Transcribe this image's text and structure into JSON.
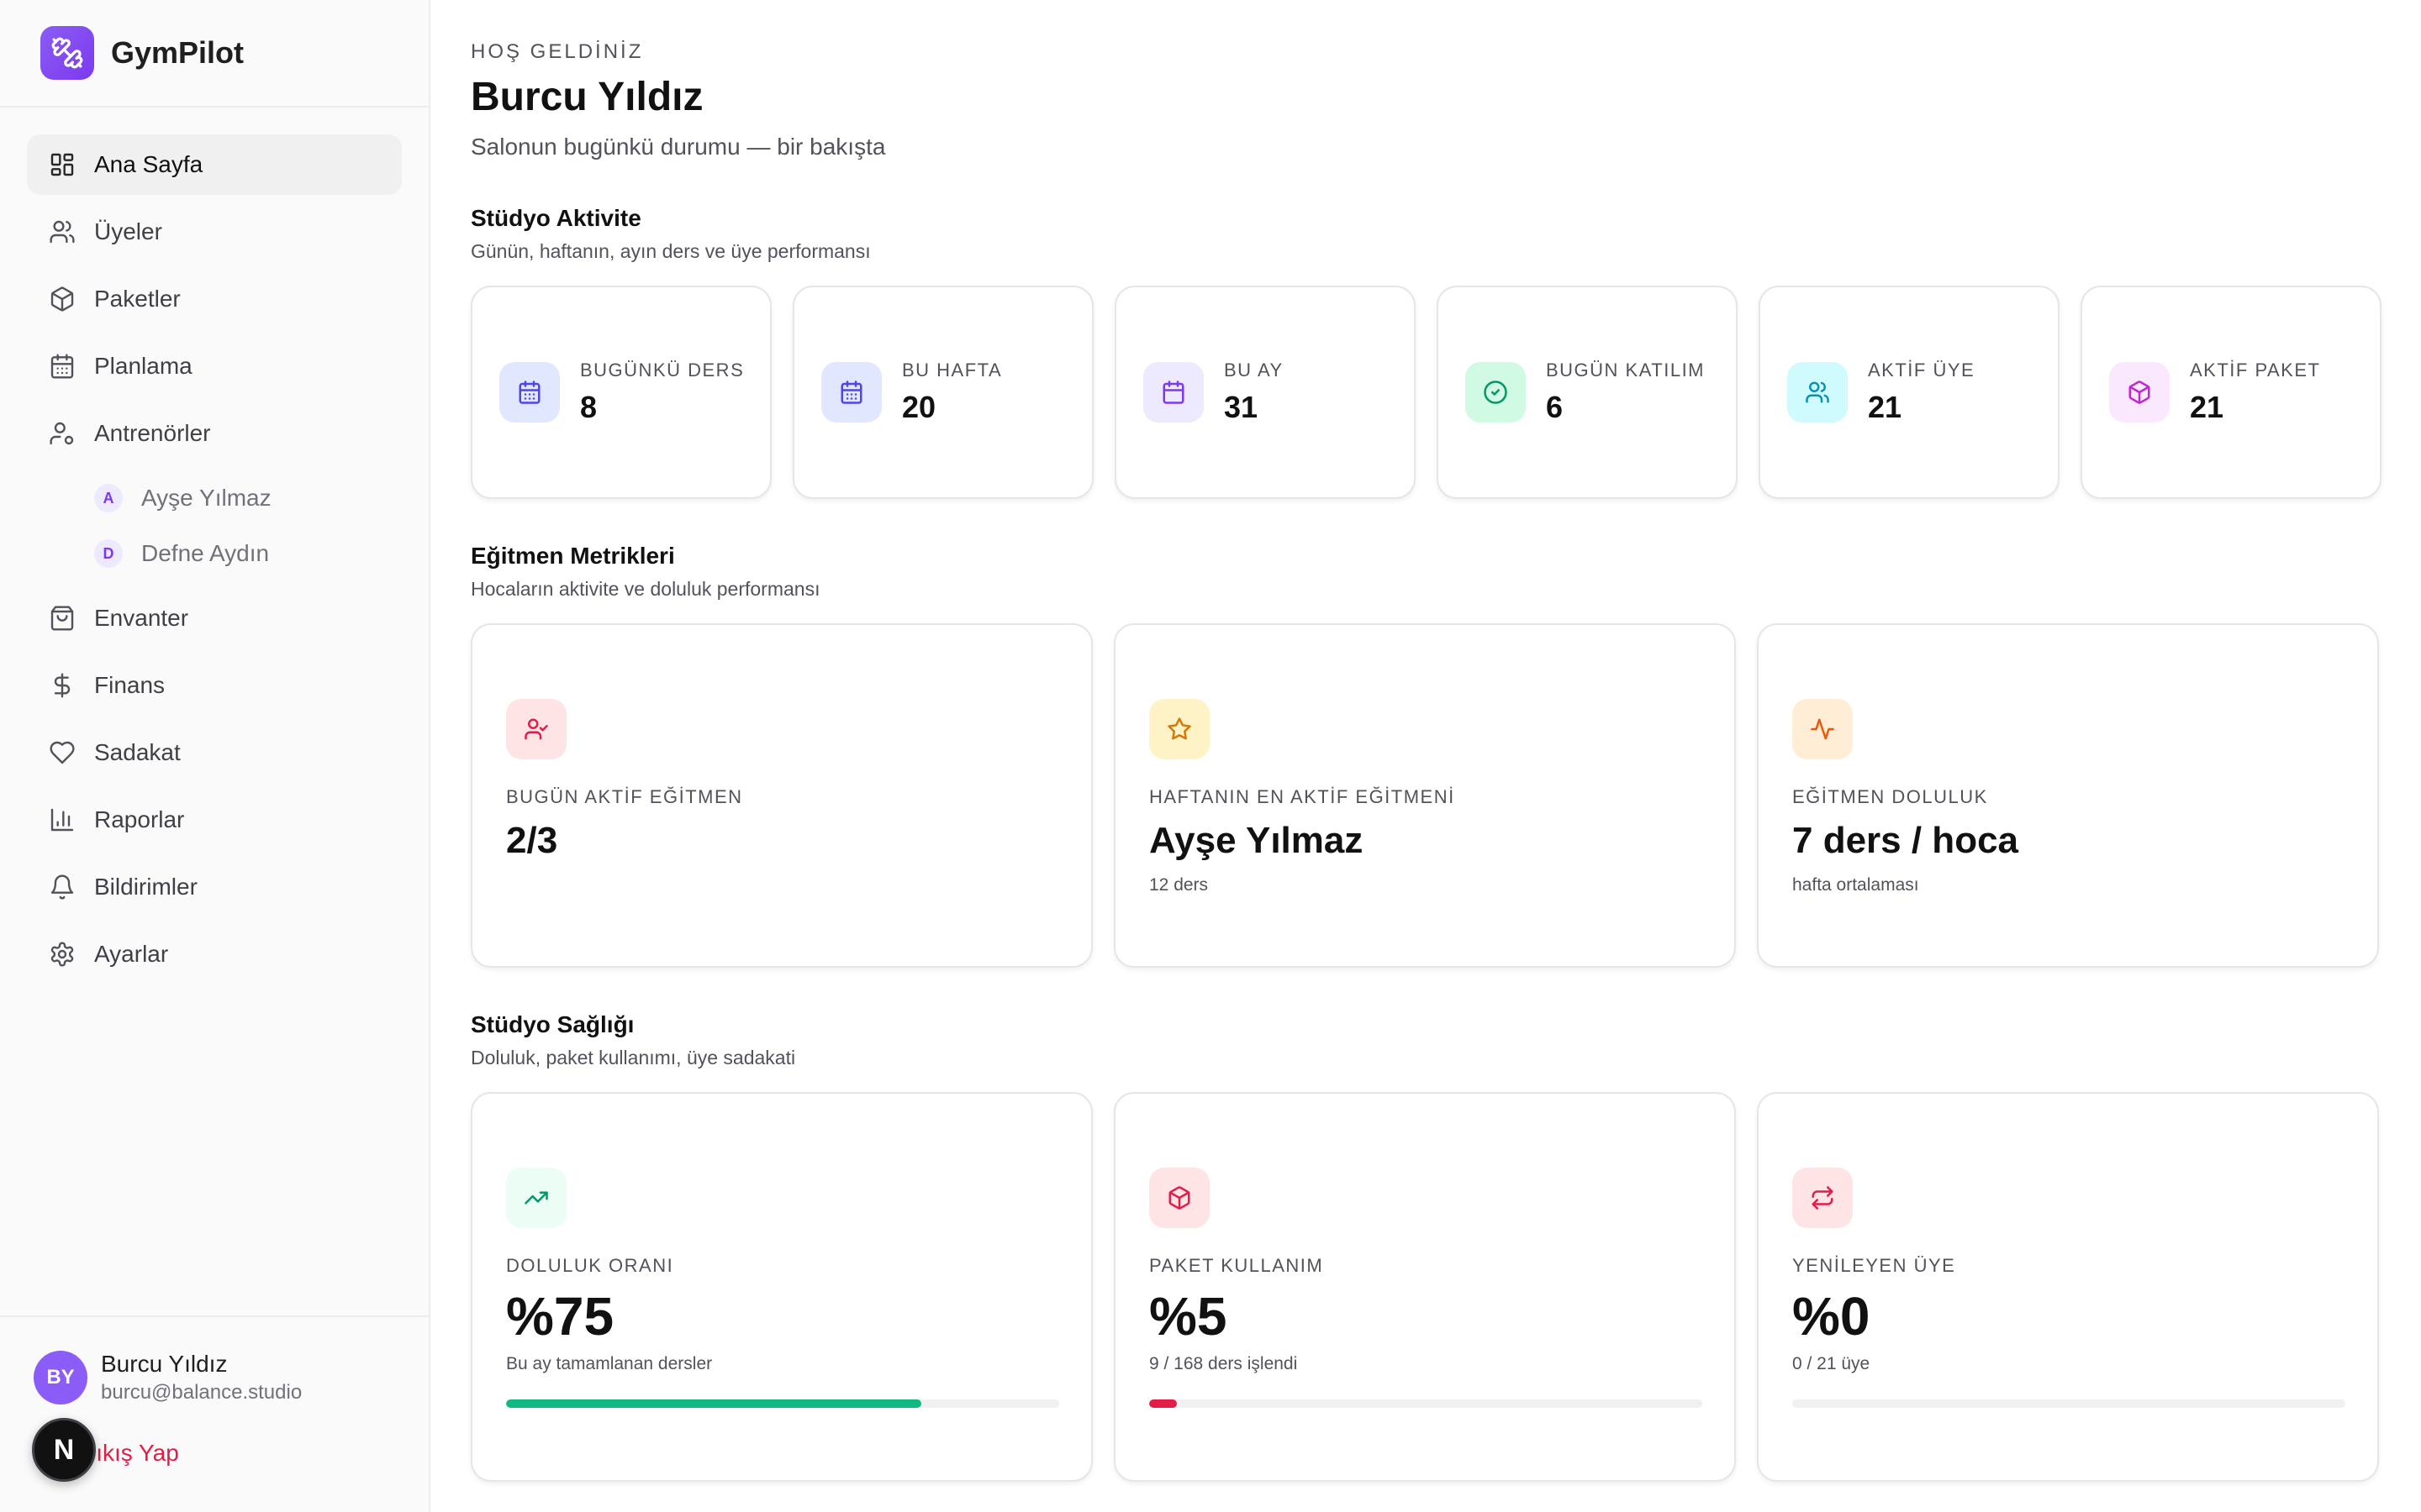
{
  "app": {
    "name": "GymPilot",
    "brand_color": "#8b5cf6"
  },
  "sidebar": {
    "nav": [
      {
        "label": "Ana Sayfa",
        "icon": "dashboard-icon",
        "active": true
      },
      {
        "label": "Üyeler",
        "icon": "users-icon"
      },
      {
        "label": "Paketler",
        "icon": "package-icon"
      },
      {
        "label": "Planlama",
        "icon": "calendar-icon"
      },
      {
        "label": "Antrenörler",
        "icon": "trainer-icon"
      },
      {
        "label": "Envanter",
        "icon": "shopping-bag-icon"
      },
      {
        "label": "Finans",
        "icon": "dollar-icon"
      },
      {
        "label": "Sadakat",
        "icon": "heart-icon"
      },
      {
        "label": "Raporlar",
        "icon": "bar-chart-icon"
      },
      {
        "label": "Bildirimler",
        "icon": "bell-icon"
      },
      {
        "label": "Ayarlar",
        "icon": "gear-icon"
      }
    ],
    "trainers": [
      {
        "initial": "A",
        "name": "Ayşe Yılmaz"
      },
      {
        "initial": "D",
        "name": "Defne Aydın"
      }
    ],
    "user": {
      "initials": "BY",
      "name": "Burcu Yıldız",
      "email": "burcu@balance.studio"
    },
    "logout_label": "Çıkış Yap",
    "overlay_badge": "N"
  },
  "header": {
    "eyebrow": "HOŞ GELDİNİZ",
    "title": "Burcu Yıldız",
    "subtitle": "Salonun bugünkü durumu — bir bakışta"
  },
  "activity": {
    "title": "Stüdyo Aktivite",
    "subtitle": "Günün, haftanın, ayın ders ve üye performansı",
    "stats": [
      {
        "label": "BUGÜNKÜ DERS",
        "value": "8",
        "icon": "calendar-icon",
        "color": "#4f46e5",
        "bg": "#e0e7ff"
      },
      {
        "label": "BU HAFTA",
        "value": "20",
        "icon": "calendar-icon",
        "color": "#4f46e5",
        "bg": "#e0e7ff"
      },
      {
        "label": "BU AY",
        "value": "31",
        "icon": "calendar-icon",
        "color": "#7c3aed",
        "bg": "#ede9fe"
      },
      {
        "label": "BUGÜN KATILIM",
        "value": "6",
        "icon": "check-circle-icon",
        "color": "#059669",
        "bg": "#d1fae5"
      },
      {
        "label": "AKTİF ÜYE",
        "value": "21",
        "icon": "users-icon",
        "color": "#0891b2",
        "bg": "#cffafe"
      },
      {
        "label": "AKTİF PAKET",
        "value": "21",
        "icon": "package-icon",
        "color": "#c026d3",
        "bg": "#fae8ff"
      }
    ]
  },
  "trainer_metrics": {
    "title": "Eğitmen Metrikleri",
    "subtitle": "Hocaların aktivite ve doluluk performansı",
    "cards": [
      {
        "label": "BUGÜN AKTİF EĞİTMEN",
        "value": "2/3",
        "note": "",
        "icon": "user-check-icon",
        "color": "#e11d48",
        "bg": "#ffe4e6"
      },
      {
        "label": "HAFTANIN EN AKTİF EĞİTMENİ",
        "value": "Ayşe Yılmaz",
        "note": "12 ders",
        "icon": "star-icon",
        "color": "#d97706",
        "bg": "#fef3c7"
      },
      {
        "label": "EĞİTMEN DOLULUK",
        "value": "7 ders / hoca",
        "note": "hafta ortalaması",
        "icon": "activity-icon",
        "color": "#ea580c",
        "bg": "#ffedd5"
      }
    ]
  },
  "health": {
    "title": "Stüdyo Sağlığı",
    "subtitle": "Doluluk, paket kullanımı, üye sadakati",
    "cards": [
      {
        "label": "DOLULUK ORANI",
        "value": "%75",
        "note": "Bu ay tamamlanan dersler",
        "progress": 0.75,
        "icon": "trending-up-icon",
        "color": "#059669",
        "bg": "#ecfdf5",
        "bar_color": "#10b981"
      },
      {
        "label": "PAKET KULLANIM",
        "value": "%5",
        "note": "9 / 168 ders işlendi",
        "progress": 0.05,
        "icon": "package-icon",
        "color": "#e11d48",
        "bg": "#ffe4e6",
        "bar_color": "#e11d48"
      },
      {
        "label": "YENİLEYEN ÜYE",
        "value": "%0",
        "note": "0 / 21 üye",
        "progress": 0,
        "icon": "repeat-icon",
        "color": "#e11d48",
        "bg": "#ffe4e6",
        "bar_color": "#e11d48"
      }
    ]
  }
}
